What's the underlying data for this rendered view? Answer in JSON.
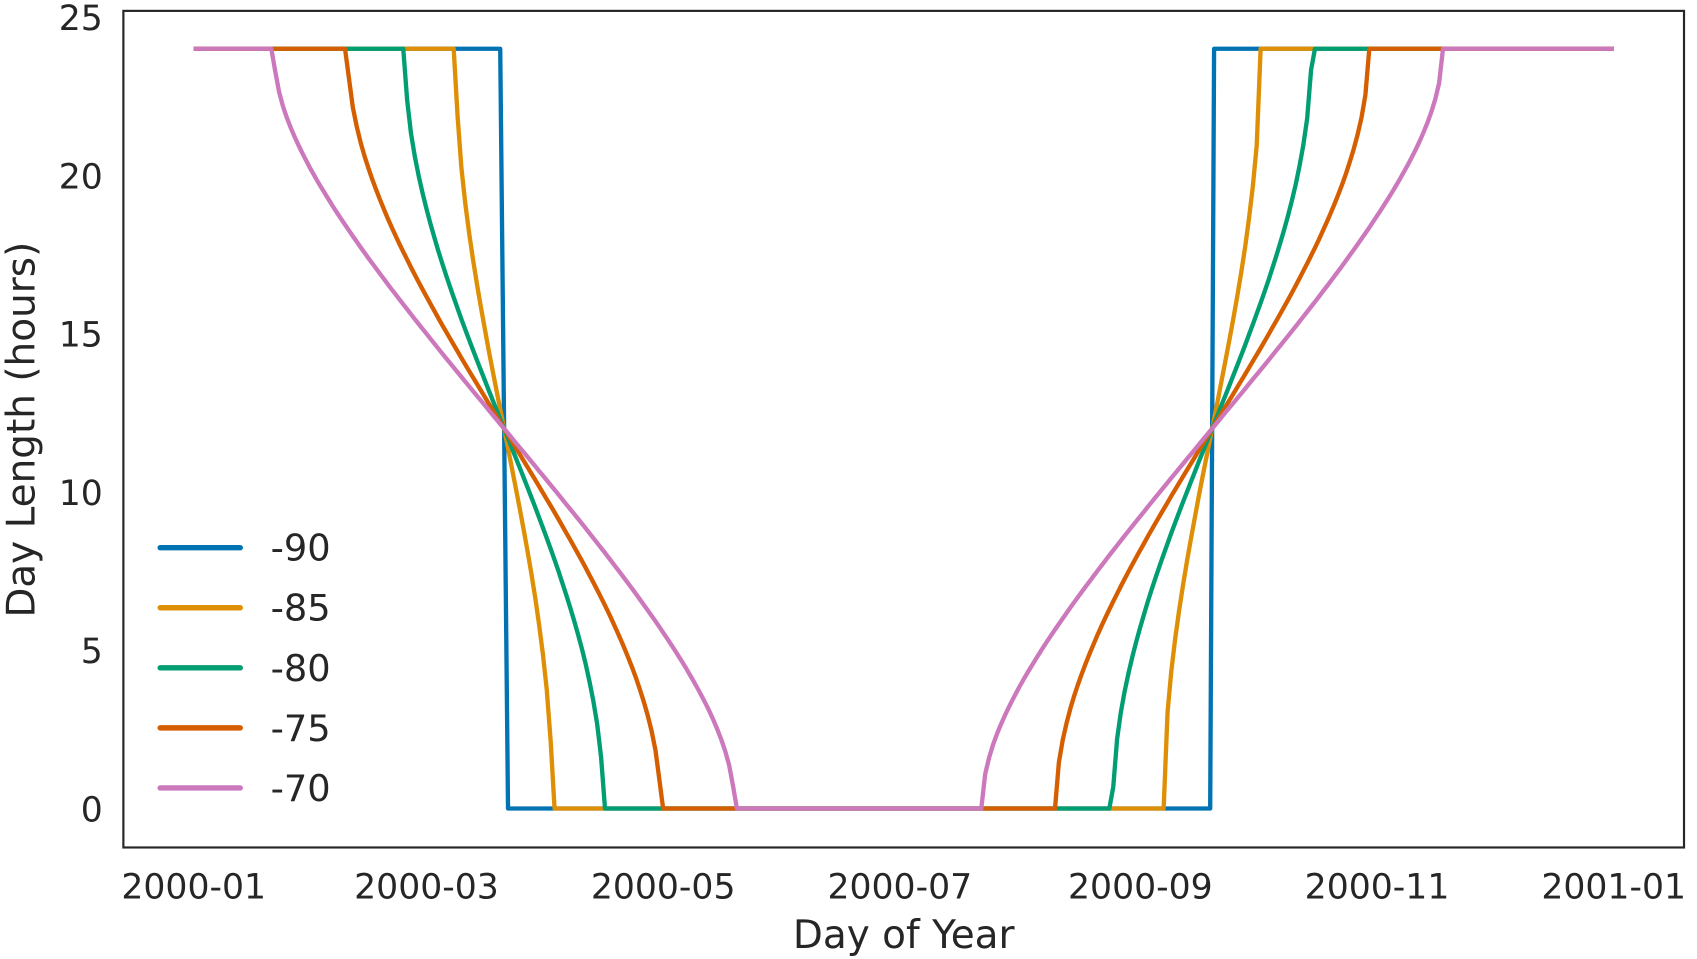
{
  "chart_data": {
    "type": "line",
    "title": "",
    "xlabel": "Day of Year",
    "ylabel": "Day Length (hours)",
    "x_unit": "day of year 2000 (0 = 2000-01-01)",
    "xlim_days": [
      -18,
      384
    ],
    "ylim": [
      -1.2,
      25
    ],
    "x_ticks": [
      {
        "label": "2000-01",
        "day": 0
      },
      {
        "label": "2000-03",
        "day": 60
      },
      {
        "label": "2000-05",
        "day": 121
      },
      {
        "label": "2000-07",
        "day": 182
      },
      {
        "label": "2000-09",
        "day": 244
      },
      {
        "label": "2000-11",
        "day": 305
      },
      {
        "label": "2001-01",
        "day": 366
      }
    ],
    "y_ticks": [
      {
        "label": "0",
        "value": 0
      },
      {
        "label": "5",
        "value": 5
      },
      {
        "label": "10",
        "value": 10
      },
      {
        "label": "15",
        "value": 15
      },
      {
        "label": "20",
        "value": 20
      },
      {
        "label": "25",
        "value": 25
      }
    ],
    "grid": false,
    "legend_position": "lower-left",
    "x_range_days": [
      0,
      366
    ],
    "series": [
      {
        "name": "-90",
        "latitude": -90,
        "color": "#0173b2"
      },
      {
        "name": "-85",
        "latitude": -85,
        "color": "#de8f05"
      },
      {
        "name": "-80",
        "latitude": -80,
        "color": "#029e73"
      },
      {
        "name": "-75",
        "latitude": -75,
        "color": "#d55e00"
      },
      {
        "name": "-70",
        "latitude": -70,
        "color": "#cc78bc"
      }
    ],
    "key_points": {
      "equinox_crossing_hours": 12,
      "polar_night_start_day": {
        "-90": 81,
        "-85": 93,
        "-80": 106,
        "-75": 121,
        "-70": 140
      },
      "polar_night_end_day": {
        "-90": 264,
        "-85": 251,
        "-80": 237,
        "-75": 223,
        "-70": 204
      }
    }
  }
}
